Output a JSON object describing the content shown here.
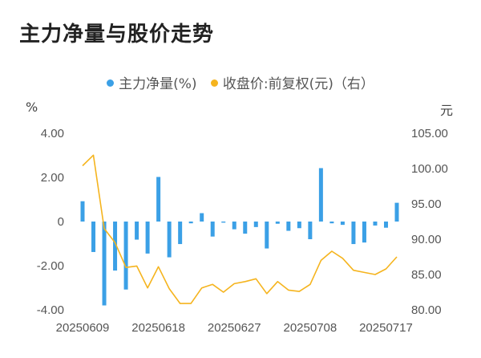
{
  "title": "主力净量与股价走势",
  "legend": {
    "main_net": "主力净量(%)",
    "close": "收盘价:前复权(元)（右）"
  },
  "units": {
    "left": "%",
    "right": "元"
  },
  "colors": {
    "bar": "#3ba0e6",
    "line": "#f5b41e",
    "axis": "#555555"
  },
  "chart_data": {
    "type": "bar+line",
    "title": "主力净量与股价走势",
    "x_tick_labels": [
      "20250609",
      "20250618",
      "20250627",
      "20250708",
      "20250717"
    ],
    "x_tick_indices": [
      0,
      7,
      14,
      21,
      28
    ],
    "y_left": {
      "label": "%",
      "ticks": [
        4.0,
        2.0,
        0,
        -2.0,
        -4.0
      ],
      "tick_labels": [
        "4.00",
        "2.00",
        "0",
        "-2.00",
        "-4.00"
      ],
      "range": [
        -4,
        4
      ]
    },
    "y_right": {
      "label": "元",
      "ticks": [
        105,
        100,
        95,
        90,
        85,
        80
      ],
      "tick_labels": [
        "105.00",
        "100.00",
        "95.00",
        "90.00",
        "85.00",
        "80.00"
      ],
      "range": [
        80,
        105
      ]
    },
    "series": [
      {
        "name": "主力净量(%)",
        "type": "bar",
        "axis": "left",
        "values": [
          0.92,
          -1.38,
          -3.8,
          -2.22,
          -3.08,
          -0.82,
          -1.45,
          2.02,
          -1.62,
          -1.02,
          -0.08,
          0.38,
          -0.68,
          -0.05,
          -0.35,
          -0.55,
          -0.25,
          -1.22,
          -0.1,
          -0.42,
          -0.3,
          -0.8,
          2.42,
          -0.08,
          -0.15,
          -1.02,
          -0.95,
          -0.18,
          -0.28,
          0.85
        ]
      },
      {
        "name": "收盘价:前复权(元)（右）",
        "type": "line",
        "axis": "right",
        "values": [
          100.4,
          101.9,
          91.5,
          89.5,
          86.0,
          86.2,
          83.1,
          86.1,
          83.0,
          80.9,
          80.9,
          83.1,
          83.6,
          82.5,
          83.7,
          84.0,
          84.4,
          82.3,
          84.0,
          82.8,
          82.6,
          83.6,
          87.0,
          88.3,
          87.3,
          85.6,
          85.3,
          85.0,
          85.8,
          87.5
        ]
      }
    ]
  }
}
